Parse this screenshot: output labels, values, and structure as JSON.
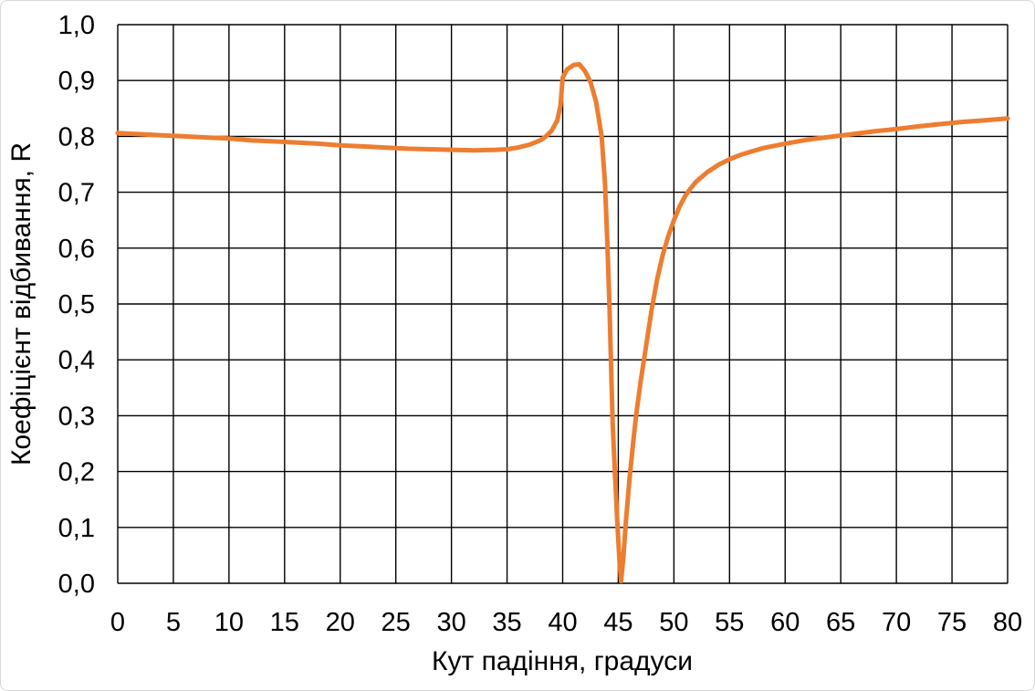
{
  "chart": {
    "background_color": "#FFFFFF",
    "frame_border_color": "#D9D9D9",
    "grid_color": "#000000",
    "text_color": "#000000",
    "axis": {
      "x_tick_labels": [
        "0",
        "5",
        "10",
        "15",
        "20",
        "25",
        "30",
        "35",
        "40",
        "45",
        "50",
        "55",
        "60",
        "65",
        "70",
        "75",
        "80"
      ],
      "y_tick_labels": [
        "0,0",
        "0,1",
        "0,2",
        "0,3",
        "0,4",
        "0,5",
        "0,6",
        "0,7",
        "0,8",
        "0,9",
        "1,0"
      ]
    }
  },
  "chart_data": {
    "type": "line",
    "title": "",
    "xlabel": "Кут падіння, градуси",
    "ylabel": "Коефіцієнт відбивання, R",
    "xlim": [
      0,
      80
    ],
    "ylim": [
      0.0,
      1.0
    ],
    "x_tick_step": 5,
    "y_tick_step": 0.1,
    "grid": "both",
    "legend": "none",
    "series": [
      {
        "name": "Коефіцієнт відбивання R",
        "color": "#ED7D31",
        "line_width": 5,
        "points": [
          [
            0,
            0.806
          ],
          [
            2,
            0.804
          ],
          [
            4,
            0.802
          ],
          [
            6,
            0.8
          ],
          [
            8,
            0.798
          ],
          [
            10,
            0.796
          ],
          [
            12,
            0.793
          ],
          [
            14,
            0.791
          ],
          [
            16,
            0.789
          ],
          [
            18,
            0.787
          ],
          [
            20,
            0.784
          ],
          [
            22,
            0.782
          ],
          [
            24,
            0.78
          ],
          [
            26,
            0.778
          ],
          [
            28,
            0.777
          ],
          [
            30,
            0.776
          ],
          [
            32,
            0.775
          ],
          [
            34,
            0.776
          ],
          [
            35,
            0.777
          ],
          [
            36,
            0.78
          ],
          [
            37,
            0.785
          ],
          [
            38,
            0.793
          ],
          [
            38.5,
            0.8
          ],
          [
            39,
            0.81
          ],
          [
            39.5,
            0.828
          ],
          [
            39.8,
            0.855
          ],
          [
            40,
            0.905
          ],
          [
            40.4,
            0.92
          ],
          [
            41,
            0.928
          ],
          [
            41.5,
            0.929
          ],
          [
            42,
            0.917
          ],
          [
            42.5,
            0.897
          ],
          [
            43,
            0.862
          ],
          [
            43.5,
            0.8
          ],
          [
            43.8,
            0.718
          ],
          [
            44,
            0.615
          ],
          [
            44.2,
            0.5
          ],
          [
            44.35,
            0.39
          ],
          [
            44.5,
            0.285
          ],
          [
            44.7,
            0.195
          ],
          [
            44.9,
            0.115
          ],
          [
            45.1,
            0.04
          ],
          [
            45.25,
            0.004
          ],
          [
            45.45,
            0.045
          ],
          [
            45.7,
            0.115
          ],
          [
            46,
            0.185
          ],
          [
            46.3,
            0.245
          ],
          [
            46.6,
            0.3
          ],
          [
            47,
            0.36
          ],
          [
            47.5,
            0.425
          ],
          [
            48,
            0.49
          ],
          [
            48.5,
            0.545
          ],
          [
            49,
            0.588
          ],
          [
            49.5,
            0.622
          ],
          [
            50,
            0.65
          ],
          [
            50.5,
            0.674
          ],
          [
            51,
            0.693
          ],
          [
            51.5,
            0.707
          ],
          [
            52,
            0.719
          ],
          [
            53,
            0.736
          ],
          [
            54,
            0.749
          ],
          [
            55,
            0.759
          ],
          [
            56,
            0.767
          ],
          [
            57,
            0.773
          ],
          [
            58,
            0.779
          ],
          [
            59,
            0.783
          ],
          [
            60,
            0.787
          ],
          [
            62,
            0.794
          ],
          [
            64,
            0.799
          ],
          [
            66,
            0.804
          ],
          [
            68,
            0.809
          ],
          [
            70,
            0.813
          ],
          [
            72,
            0.818
          ],
          [
            74,
            0.822
          ],
          [
            76,
            0.826
          ],
          [
            78,
            0.829
          ],
          [
            80,
            0.832
          ]
        ]
      }
    ]
  }
}
